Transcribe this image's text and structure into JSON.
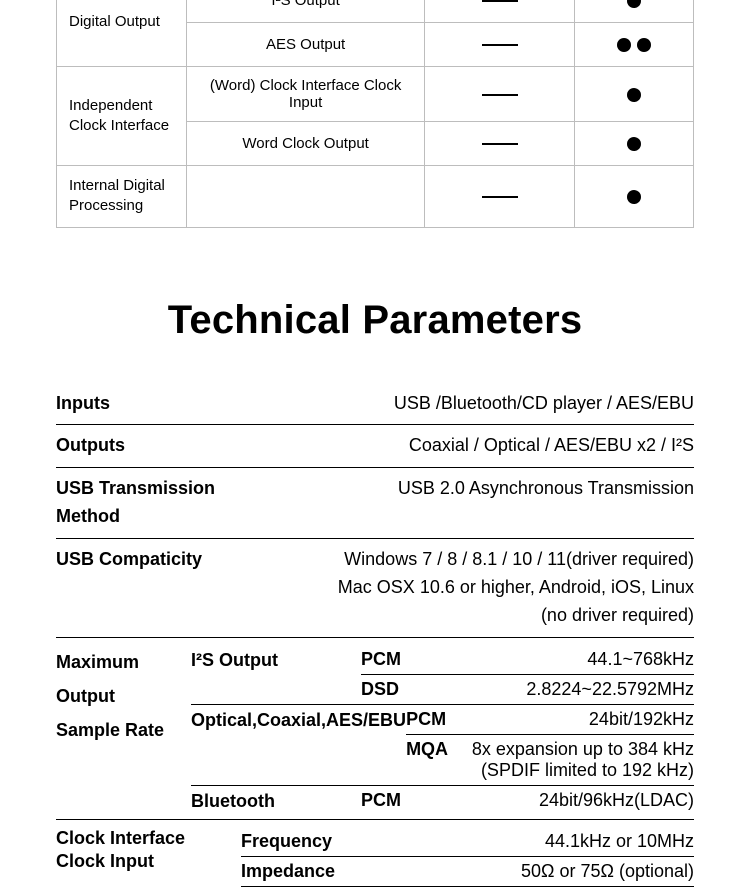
{
  "top_table": {
    "rows": [
      {
        "head": "Digital Output",
        "label": "I²S Output",
        "c": "dash",
        "d": "dot"
      },
      {
        "head": "",
        "label": "AES Output",
        "c": "dash",
        "d": "dot2"
      },
      {
        "head": "Independent Clock Interface",
        "label": "(Word) Clock Interface Clock Input",
        "c": "dash",
        "d": "dot"
      },
      {
        "head": "",
        "label": "Word Clock Output",
        "c": "dash",
        "d": "dot"
      },
      {
        "head": "Internal Digital Processing",
        "label": "",
        "c": "dash",
        "d": "dot"
      }
    ]
  },
  "heading": "Technical Parameters",
  "specs": [
    {
      "label": "Inputs",
      "value": "USB /Bluetooth/CD player / AES/EBU"
    },
    {
      "label": "Outputs",
      "value": "Coaxial / Optical / AES/EBU x2 / I²S"
    },
    {
      "label": "USB Transmission Method",
      "value": "USB 2.0 Asynchronous Transmission"
    },
    {
      "label": "USB Compaticity",
      "value": "Windows 7 / 8 / 8.1 / 10 / 11(driver required)\nMac OSX 10.6 or higher,  Android,  iOS,  Linux\n(no driver required)"
    }
  ],
  "sample_rate": {
    "heading": "Maximum\nOutput\nSample Rate",
    "groups": [
      {
        "name": "I²S Output",
        "lines": [
          {
            "fmt": "PCM",
            "val": "44.1~768kHz"
          },
          {
            "fmt": "DSD",
            "val": "2.8224~22.5792MHz"
          }
        ]
      },
      {
        "name": "Optical,Coaxial,AES/EBU",
        "lines": [
          {
            "fmt": "PCM",
            "val": "24bit/192kHz"
          },
          {
            "fmt": "MQA",
            "val": "8x expansion up to 384 kHz\n(SPDIF limited to 192 kHz) "
          }
        ]
      },
      {
        "name": "Bluetooth",
        "lines": [
          {
            "fmt": "PCM",
            "val": "24bit/96kHz(LDAC)"
          }
        ]
      }
    ]
  },
  "clock": {
    "heading": "Clock Interface\nClock Input",
    "lines": [
      {
        "k": "Frequency",
        "v": "44.1kHz or 10MHz"
      },
      {
        "k": "Impedance",
        "v": "50Ω or 75Ω (optional)"
      }
    ]
  }
}
